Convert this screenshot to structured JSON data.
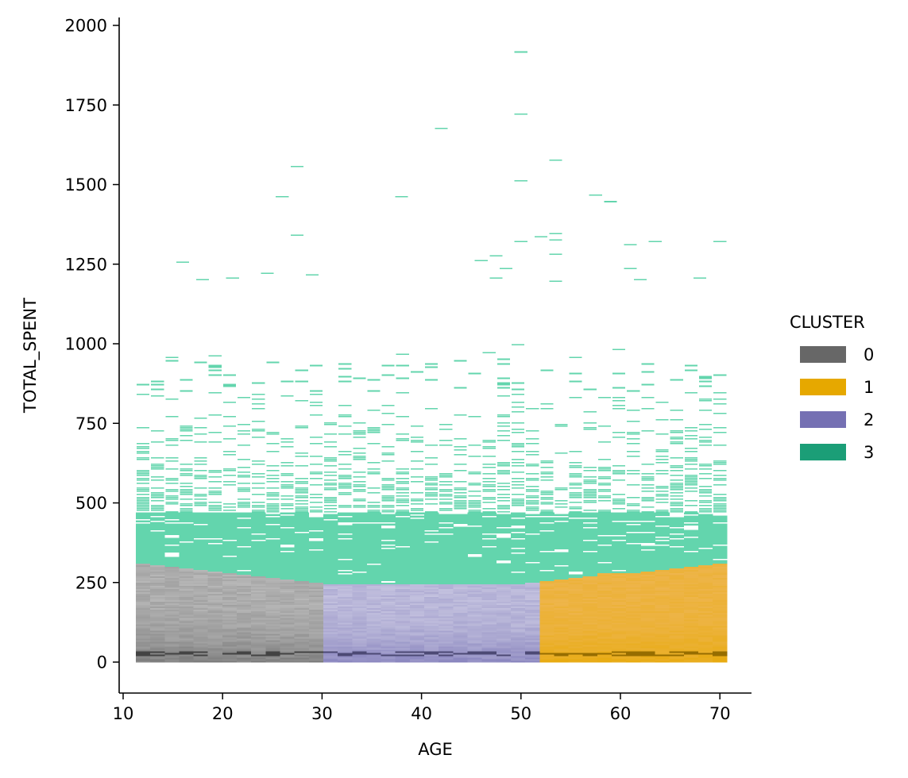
{
  "chart_data": {
    "type": "heatmap",
    "subtype": "2d histogram (age bins x spending bins), colored by cluster",
    "xlabel": "AGE",
    "ylabel": "TOTAL_SPENT",
    "xlim": [
      9.5,
      73
    ],
    "ylim": [
      -95,
      2020
    ],
    "x_ticks": [
      10,
      20,
      30,
      40,
      50,
      60,
      70
    ],
    "y_ticks": [
      0,
      250,
      500,
      750,
      1000,
      1250,
      1500,
      1750,
      2000
    ],
    "grid": false,
    "age_range": [
      12,
      70
    ],
    "age_bin_width": 1.45,
    "spend_bin_height": 5,
    "legend": {
      "title": "CLUSTER",
      "placement": "right",
      "entries": [
        {
          "label": "0",
          "color": "#676767"
        },
        {
          "label": "1",
          "color": "#e6a800"
        },
        {
          "label": "2",
          "color": "#7570b3"
        },
        {
          "label": "3",
          "color": "#1b9e77"
        }
      ]
    },
    "series": [
      {
        "name": "0",
        "color": "#676767",
        "light_color": "#b8b8b8",
        "age_range": [
          12,
          30.8
        ],
        "total_spent_range": [
          0,
          310
        ]
      },
      {
        "name": "1",
        "color": "#e6a800",
        "light_color": "#eeb54c",
        "age_range": [
          48.5,
          70
        ],
        "total_spent_range": [
          0,
          312
        ]
      },
      {
        "name": "2",
        "color": "#7570b3",
        "light_color": "#c4c2df",
        "age_range": [
          29.5,
          51.5
        ],
        "total_spent_range": [
          0,
          245
        ]
      },
      {
        "name": "3",
        "color": "#1b9e77",
        "light_color": "#63d5ad",
        "age_range": [
          12,
          70
        ],
        "total_spent_range": [
          240,
          1915
        ]
      }
    ],
    "cluster3_outliers": [
      {
        "age": 50,
        "total_spent": 1915
      },
      {
        "age": 50,
        "total_spent": 1720
      },
      {
        "age": 42,
        "total_spent": 1675
      },
      {
        "age": 53.5,
        "total_spent": 1575
      },
      {
        "age": 27.5,
        "total_spent": 1555
      },
      {
        "age": 50,
        "total_spent": 1510
      },
      {
        "age": 38,
        "total_spent": 1460
      },
      {
        "age": 57.5,
        "total_spent": 1465
      },
      {
        "age": 26,
        "total_spent": 1460
      },
      {
        "age": 59,
        "total_spent": 1445
      },
      {
        "age": 27.5,
        "total_spent": 1340
      },
      {
        "age": 53.5,
        "total_spent": 1345
      },
      {
        "age": 52,
        "total_spent": 1335
      },
      {
        "age": 50,
        "total_spent": 1320
      },
      {
        "age": 53.5,
        "total_spent": 1325
      },
      {
        "age": 70,
        "total_spent": 1320
      },
      {
        "age": 63.5,
        "total_spent": 1320
      },
      {
        "age": 61,
        "total_spent": 1310
      },
      {
        "age": 53.5,
        "total_spent": 1280
      },
      {
        "age": 47.5,
        "total_spent": 1275
      },
      {
        "age": 46,
        "total_spent": 1260
      },
      {
        "age": 16,
        "total_spent": 1255
      },
      {
        "age": 48.5,
        "total_spent": 1235
      },
      {
        "age": 61,
        "total_spent": 1235
      },
      {
        "age": 24.5,
        "total_spent": 1220
      },
      {
        "age": 29,
        "total_spent": 1215
      },
      {
        "age": 18,
        "total_spent": 1200
      },
      {
        "age": 21,
        "total_spent": 1205
      },
      {
        "age": 47.5,
        "total_spent": 1205
      },
      {
        "age": 53.5,
        "total_spent": 1195
      },
      {
        "age": 62,
        "total_spent": 1200
      },
      {
        "age": 68,
        "total_spent": 1205
      }
    ],
    "peak_density_total_spent": 25
  }
}
